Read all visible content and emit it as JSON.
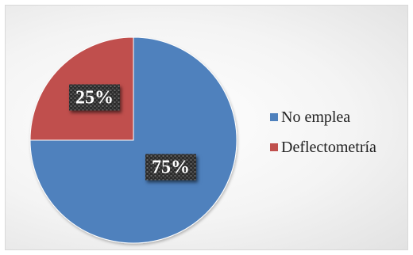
{
  "chart_data": {
    "type": "pie",
    "categories": [
      "No emplea",
      "Deflectometría"
    ],
    "values": [
      75,
      25
    ],
    "data_labels": [
      "75%",
      "25%"
    ],
    "colors": [
      "#4f81bd",
      "#c0504d"
    ],
    "title": "",
    "legend_position": "right",
    "data_label_style": "dark box with white bold text"
  }
}
